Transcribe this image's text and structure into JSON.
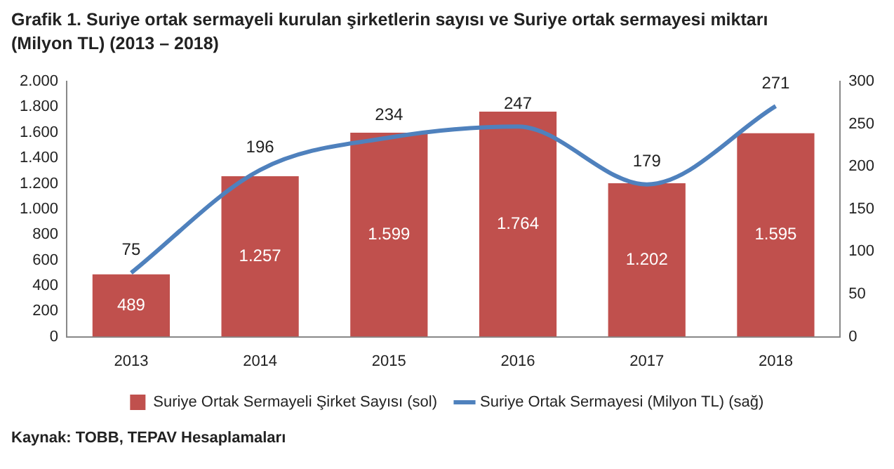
{
  "chart_data": {
    "type": "bar",
    "title": "Grafik 1. Suriye ortak sermayeli kurulan şirketlerin sayısı ve Suriye ortak sermayesi miktarı (Milyon TL) (2013 – 2018)",
    "categories": [
      "2013",
      "2014",
      "2015",
      "2016",
      "2017",
      "2018"
    ],
    "series": [
      {
        "name": "Suriye Ortak Sermayeli Şirket Sayısı (sol)",
        "color": "#c0504d",
        "values": [
          489,
          1257,
          1599,
          1764,
          1202,
          1595
        ],
        "value_labels": [
          "489",
          "1.257",
          "1.599",
          "1.764",
          "1.202",
          "1.595"
        ]
      },
      {
        "name": "Suriye Ortak Sermayesi (Milyon TL) (sağ)",
        "type": "line",
        "axis": "y2",
        "color": "#4f81bd",
        "values": [
          75,
          196,
          234,
          247,
          179,
          271
        ],
        "value_labels": [
          "75",
          "196",
          "234",
          "247",
          "179",
          "271"
        ]
      }
    ],
    "ylim": [
      0,
      2000
    ],
    "yticks": [
      0,
      {
        "value": 200,
        "label": "200"
      },
      {
        "value": 400,
        "label": "400"
      },
      {
        "value": 600,
        "label": "600"
      },
      {
        "value": 800,
        "label": "800"
      },
      {
        "value": 1000,
        "label": "1.000"
      },
      {
        "value": 1200,
        "label": "1.200"
      },
      {
        "value": 1400,
        "label": "1.400"
      },
      {
        "value": 1600,
        "label": "1.600"
      },
      {
        "value": 1800,
        "label": "1.800"
      },
      {
        "value": 2000,
        "label": "2.000"
      }
    ],
    "y2lim": [
      0,
      300
    ],
    "y2ticks": [
      0,
      50,
      100,
      150,
      200,
      250,
      300
    ],
    "grid": false,
    "legend": "bottom",
    "marker": "none",
    "line_style": "solid",
    "annotations": [
      "Kaynak: TOBB, TEPAV Hesaplamaları"
    ]
  }
}
